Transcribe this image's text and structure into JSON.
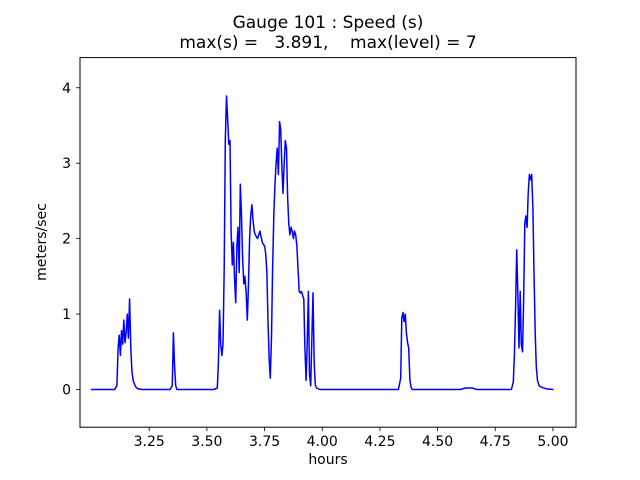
{
  "chart_data": {
    "type": "line",
    "title": "Gauge 101 : Speed (s)",
    "subtitle": "max(s) =   3.891,    max(level) = 7",
    "xlabel": "hours",
    "ylabel": "meters/sec",
    "max_s": 3.891,
    "max_level": 7,
    "line_color": "#0000ff",
    "axes_color": "#000000",
    "background": "#ffffff",
    "legend": "none",
    "grid": false,
    "xlim": [
      2.95,
      5.1
    ],
    "ylim": [
      -0.5,
      4.4
    ],
    "xticks": [
      3.25,
      3.5,
      3.75,
      4.0,
      4.25,
      4.5,
      4.75,
      5.0
    ],
    "xtick_labels": [
      "3.25",
      "3.50",
      "3.75",
      "4.00",
      "4.25",
      "4.50",
      "4.75",
      "5.00"
    ],
    "yticks": [
      0,
      1,
      2,
      3,
      4
    ],
    "ytick_labels": [
      "0",
      "1",
      "2",
      "3",
      "4"
    ],
    "series": [
      {
        "name": "Speed (s)",
        "points": [
          [
            3.0,
            0.0
          ],
          [
            3.1,
            0.0
          ],
          [
            3.11,
            0.05
          ],
          [
            3.115,
            0.55
          ],
          [
            3.12,
            0.72
          ],
          [
            3.125,
            0.45
          ],
          [
            3.13,
            0.78
          ],
          [
            3.135,
            0.6
          ],
          [
            3.14,
            0.92
          ],
          [
            3.145,
            0.62
          ],
          [
            3.15,
            0.75
          ],
          [
            3.155,
            1.0
          ],
          [
            3.16,
            0.68
          ],
          [
            3.165,
            1.2
          ],
          [
            3.17,
            0.55
          ],
          [
            3.175,
            0.25
          ],
          [
            3.18,
            0.12
          ],
          [
            3.19,
            0.04
          ],
          [
            3.2,
            0.01
          ],
          [
            3.22,
            0.0
          ],
          [
            3.34,
            0.0
          ],
          [
            3.35,
            0.05
          ],
          [
            3.355,
            0.75
          ],
          [
            3.36,
            0.3
          ],
          [
            3.365,
            0.05
          ],
          [
            3.37,
            0.0
          ],
          [
            3.53,
            0.0
          ],
          [
            3.545,
            0.02
          ],
          [
            3.55,
            0.35
          ],
          [
            3.555,
            1.05
          ],
          [
            3.56,
            0.6
          ],
          [
            3.565,
            0.45
          ],
          [
            3.57,
            0.6
          ],
          [
            3.575,
            1.6
          ],
          [
            3.58,
            3.3
          ],
          [
            3.585,
            3.891
          ],
          [
            3.59,
            3.6
          ],
          [
            3.595,
            3.25
          ],
          [
            3.6,
            3.3
          ],
          [
            3.605,
            2.1
          ],
          [
            3.61,
            1.65
          ],
          [
            3.615,
            1.95
          ],
          [
            3.62,
            1.45
          ],
          [
            3.625,
            1.15
          ],
          [
            3.63,
            1.9
          ],
          [
            3.635,
            2.15
          ],
          [
            3.64,
            1.55
          ],
          [
            3.645,
            2.72
          ],
          [
            3.65,
            2.3
          ],
          [
            3.655,
            1.75
          ],
          [
            3.66,
            1.4
          ],
          [
            3.665,
            1.5
          ],
          [
            3.67,
            1.3
          ],
          [
            3.675,
            0.92
          ],
          [
            3.68,
            1.35
          ],
          [
            3.685,
            2.0
          ],
          [
            3.69,
            2.3
          ],
          [
            3.695,
            2.45
          ],
          [
            3.7,
            2.25
          ],
          [
            3.705,
            2.1
          ],
          [
            3.71,
            2.05
          ],
          [
            3.72,
            2.0
          ],
          [
            3.73,
            2.1
          ],
          [
            3.74,
            1.95
          ],
          [
            3.75,
            1.9
          ],
          [
            3.755,
            1.8
          ],
          [
            3.76,
            1.55
          ],
          [
            3.765,
            0.9
          ],
          [
            3.77,
            0.4
          ],
          [
            3.775,
            0.15
          ],
          [
            3.78,
            0.7
          ],
          [
            3.785,
            1.6
          ],
          [
            3.79,
            2.3
          ],
          [
            3.795,
            2.7
          ],
          [
            3.8,
            3.0
          ],
          [
            3.805,
            3.2
          ],
          [
            3.81,
            2.85
          ],
          [
            3.815,
            3.55
          ],
          [
            3.82,
            3.45
          ],
          [
            3.825,
            2.95
          ],
          [
            3.83,
            2.6
          ],
          [
            3.835,
            3.0
          ],
          [
            3.84,
            3.3
          ],
          [
            3.845,
            3.2
          ],
          [
            3.85,
            2.55
          ],
          [
            3.855,
            2.2
          ],
          [
            3.86,
            2.05
          ],
          [
            3.865,
            2.15
          ],
          [
            3.87,
            2.1
          ],
          [
            3.875,
            2.0
          ],
          [
            3.88,
            2.1
          ],
          [
            3.885,
            2.05
          ],
          [
            3.89,
            1.9
          ],
          [
            3.895,
            1.6
          ],
          [
            3.9,
            1.3
          ],
          [
            3.905,
            1.28
          ],
          [
            3.91,
            1.3
          ],
          [
            3.915,
            1.25
          ],
          [
            3.92,
            1.2
          ],
          [
            3.925,
            0.55
          ],
          [
            3.93,
            0.12
          ],
          [
            3.935,
            0.6
          ],
          [
            3.94,
            1.3
          ],
          [
            3.945,
            0.2
          ],
          [
            3.95,
            0.05
          ],
          [
            3.955,
            0.7
          ],
          [
            3.96,
            1.28
          ],
          [
            3.965,
            0.35
          ],
          [
            3.97,
            0.06
          ],
          [
            3.975,
            0.02
          ],
          [
            3.99,
            0.0
          ],
          [
            4.33,
            0.0
          ],
          [
            4.34,
            0.15
          ],
          [
            4.345,
            0.95
          ],
          [
            4.35,
            1.02
          ],
          [
            4.355,
            0.9
          ],
          [
            4.36,
            1.0
          ],
          [
            4.365,
            0.75
          ],
          [
            4.37,
            0.62
          ],
          [
            4.375,
            0.55
          ],
          [
            4.38,
            0.12
          ],
          [
            4.385,
            0.03
          ],
          [
            4.39,
            0.0
          ],
          [
            4.6,
            0.0
          ],
          [
            4.62,
            0.02
          ],
          [
            4.65,
            0.02
          ],
          [
            4.67,
            0.0
          ],
          [
            4.82,
            0.0
          ],
          [
            4.828,
            0.1
          ],
          [
            4.833,
            0.45
          ],
          [
            4.838,
            1.1
          ],
          [
            4.843,
            1.85
          ],
          [
            4.848,
            1.25
          ],
          [
            4.853,
            0.55
          ],
          [
            4.858,
            1.3
          ],
          [
            4.863,
            0.6
          ],
          [
            4.868,
            0.5
          ],
          [
            4.873,
            1.15
          ],
          [
            4.878,
            2.2
          ],
          [
            4.883,
            2.3
          ],
          [
            4.888,
            2.15
          ],
          [
            4.893,
            2.6
          ],
          [
            4.898,
            2.85
          ],
          [
            4.903,
            2.78
          ],
          [
            4.908,
            2.85
          ],
          [
            4.913,
            2.4
          ],
          [
            4.918,
            1.55
          ],
          [
            4.923,
            0.75
          ],
          [
            4.928,
            0.3
          ],
          [
            4.933,
            0.12
          ],
          [
            4.94,
            0.05
          ],
          [
            4.95,
            0.03
          ],
          [
            4.97,
            0.01
          ],
          [
            5.0,
            0.0
          ]
        ]
      }
    ]
  }
}
